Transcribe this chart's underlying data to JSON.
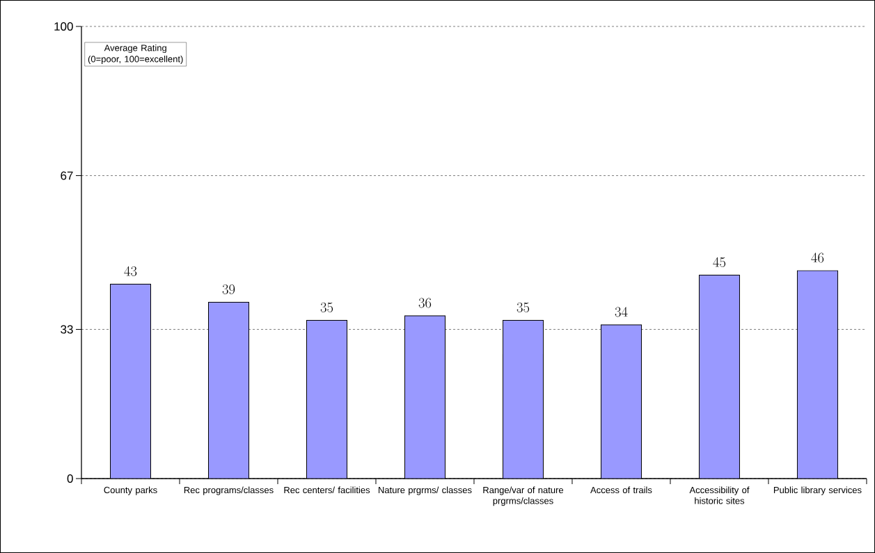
{
  "chart_data": {
    "type": "bar",
    "ylabel": "Average Rating (0=poor, 100=excellent)",
    "categories": [
      "County parks",
      "Rec programs/classes",
      "Rec centers/ facilities",
      "Nature prgrms/ classes",
      "Range/var of nature prgrms/classes",
      "Access of trails",
      "Accessibility of historic sites",
      "Public library services"
    ],
    "values": [
      43,
      39,
      35,
      36,
      35,
      34,
      45,
      46
    ],
    "color": "#9999ff",
    "ylim": [
      0,
      100
    ],
    "yticks": [
      0,
      33,
      67,
      100
    ],
    "grid": "y",
    "data_labels": true
  }
}
